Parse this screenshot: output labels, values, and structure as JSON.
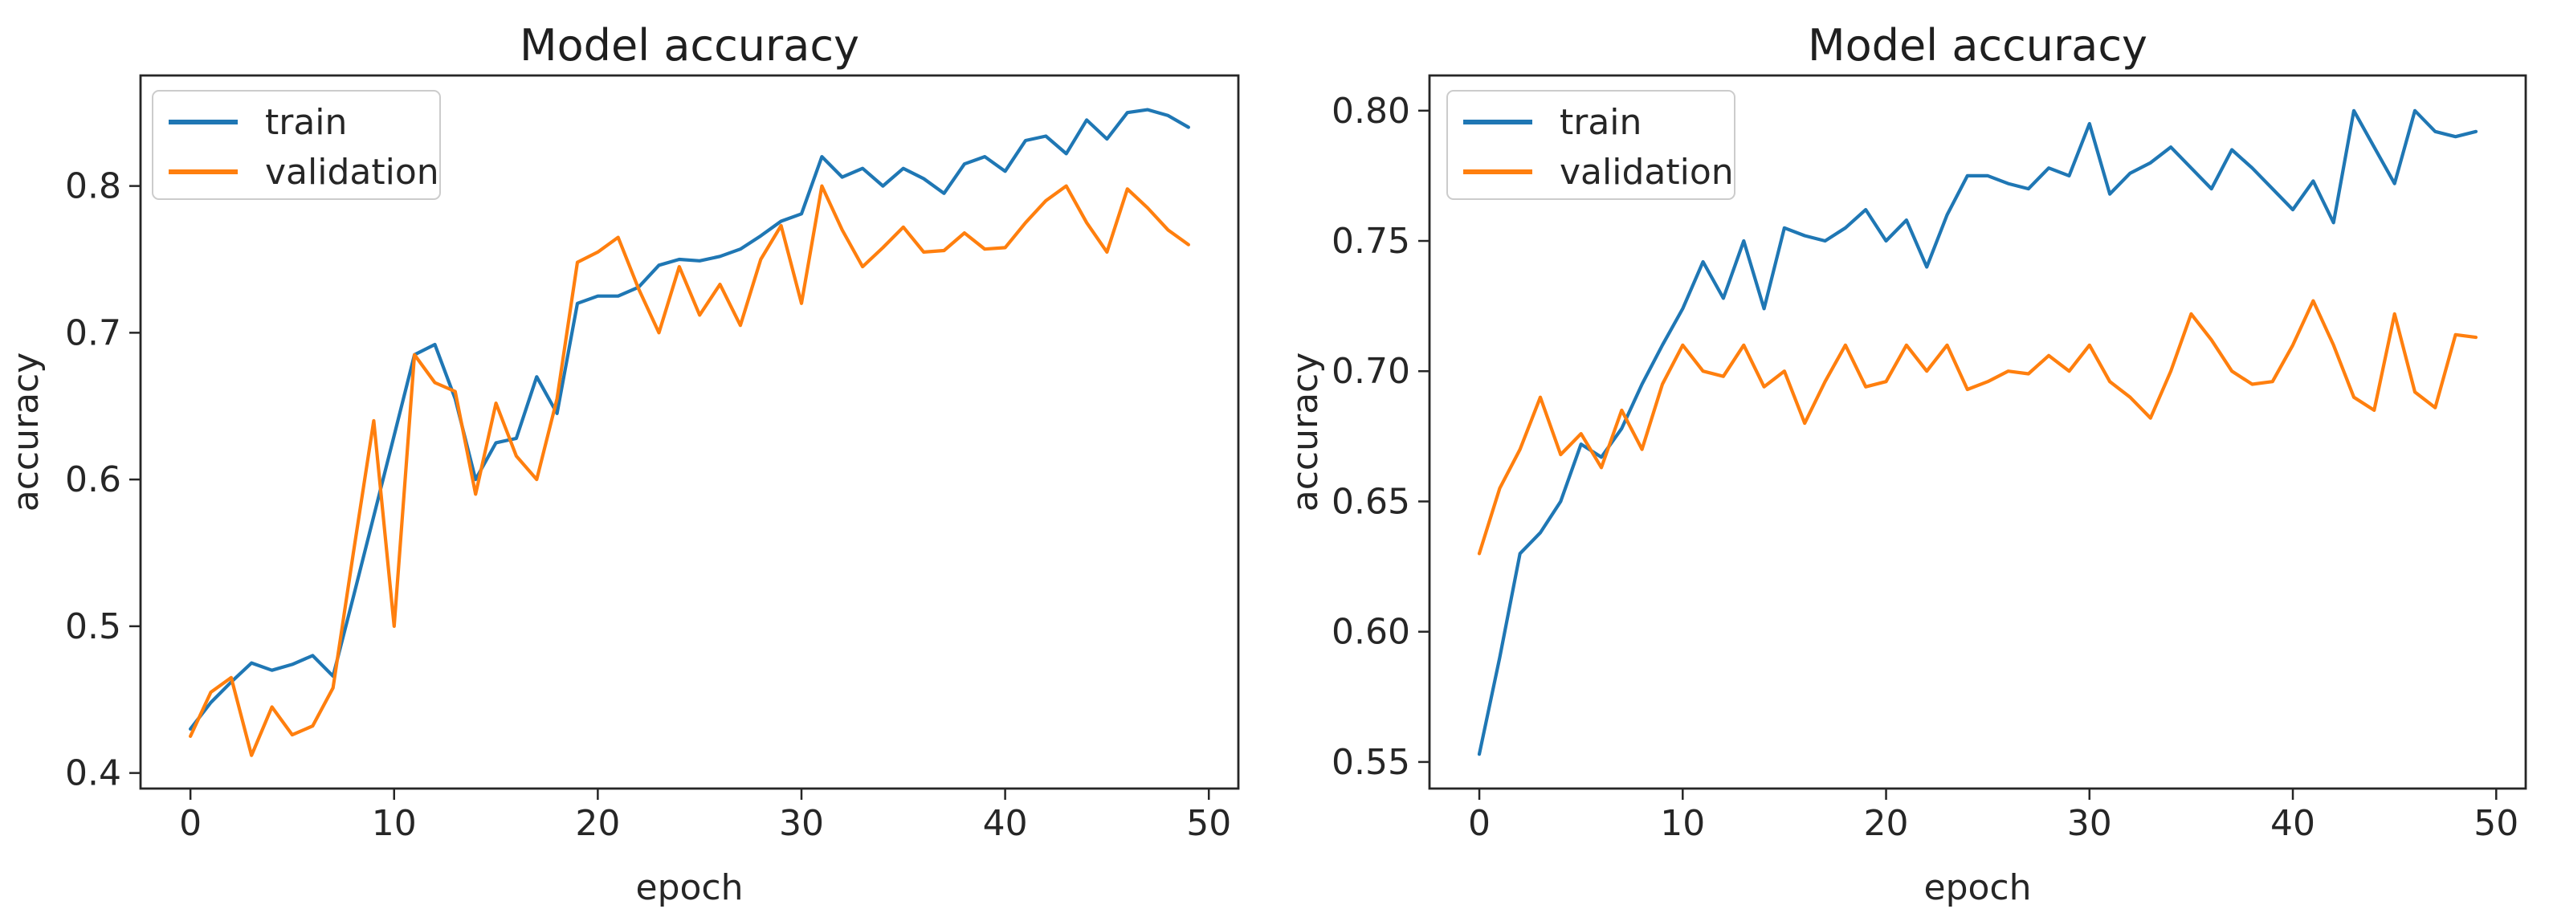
{
  "page": {
    "background": "#ffffff"
  },
  "chart_data": [
    {
      "type": "line",
      "title": "Model accuracy",
      "xlabel": "epoch",
      "ylabel": "accuracy",
      "legend_position": "upper left",
      "grid": false,
      "xlim": [
        -2.45,
        51.45
      ],
      "ylim": [
        0.3894,
        0.8753
      ],
      "x_ticks": [
        0,
        10,
        20,
        30,
        40,
        50
      ],
      "x_tick_labels": [
        "0",
        "10",
        "20",
        "30",
        "40",
        "50"
      ],
      "y_ticks": [
        0.4,
        0.5,
        0.6,
        0.7,
        0.8
      ],
      "y_tick_labels": [
        "0.4",
        "0.5",
        "0.6",
        "0.7",
        "0.8"
      ],
      "epochs": [
        0,
        1,
        2,
        3,
        4,
        5,
        6,
        7,
        8,
        9,
        10,
        11,
        12,
        13,
        14,
        15,
        16,
        17,
        18,
        19,
        20,
        21,
        22,
        23,
        24,
        25,
        26,
        27,
        28,
        29,
        30,
        31,
        32,
        33,
        34,
        35,
        36,
        37,
        38,
        39,
        40,
        41,
        42,
        43,
        44,
        45,
        46,
        47,
        48,
        49
      ],
      "series": [
        {
          "name": "train",
          "color": "#1f77b4",
          "values": [
            0.43,
            0.448,
            0.462,
            0.475,
            0.47,
            0.474,
            0.48,
            0.466,
            0.52,
            0.575,
            0.63,
            0.685,
            0.692,
            0.655,
            0.6,
            0.625,
            0.628,
            0.67,
            0.645,
            0.72,
            0.725,
            0.725,
            0.731,
            0.746,
            0.75,
            0.749,
            0.752,
            0.757,
            0.766,
            0.776,
            0.781,
            0.82,
            0.806,
            0.812,
            0.8,
            0.812,
            0.805,
            0.795,
            0.815,
            0.82,
            0.81,
            0.831,
            0.834,
            0.822,
            0.845,
            0.832,
            0.85,
            0.852,
            0.848,
            0.84
          ]
        },
        {
          "name": "validation",
          "color": "#ff7f0e",
          "values": [
            0.425,
            0.455,
            0.465,
            0.412,
            0.445,
            0.426,
            0.432,
            0.458,
            0.55,
            0.64,
            0.5,
            0.685,
            0.666,
            0.66,
            0.59,
            0.652,
            0.616,
            0.6,
            0.655,
            0.748,
            0.755,
            0.765,
            0.73,
            0.7,
            0.745,
            0.712,
            0.733,
            0.705,
            0.75,
            0.773,
            0.72,
            0.8,
            0.77,
            0.745,
            0.758,
            0.772,
            0.755,
            0.756,
            0.768,
            0.757,
            0.758,
            0.775,
            0.79,
            0.8,
            0.775,
            0.755,
            0.798,
            0.785,
            0.77,
            0.76
          ]
        }
      ]
    },
    {
      "type": "line",
      "title": "Model accuracy",
      "xlabel": "epoch",
      "ylabel": "accuracy",
      "legend_position": "upper left",
      "grid": false,
      "xlim": [
        -2.45,
        51.45
      ],
      "ylim": [
        0.5398,
        0.8135
      ],
      "x_ticks": [
        0,
        10,
        20,
        30,
        40,
        50
      ],
      "x_tick_labels": [
        "0",
        "10",
        "20",
        "30",
        "40",
        "50"
      ],
      "y_ticks": [
        0.55,
        0.6,
        0.65,
        0.7,
        0.75,
        0.8
      ],
      "y_tick_labels": [
        "0.55",
        "0.60",
        "0.65",
        "0.70",
        "0.75",
        "0.80"
      ],
      "epochs": [
        0,
        1,
        2,
        3,
        4,
        5,
        6,
        7,
        8,
        9,
        10,
        11,
        12,
        13,
        14,
        15,
        16,
        17,
        18,
        19,
        20,
        21,
        22,
        23,
        24,
        25,
        26,
        27,
        28,
        29,
        30,
        31,
        32,
        33,
        34,
        35,
        36,
        37,
        38,
        39,
        40,
        41,
        42,
        43,
        44,
        45,
        46,
        47,
        48,
        49
      ],
      "series": [
        {
          "name": "train",
          "color": "#1f77b4",
          "values": [
            0.553,
            0.59,
            0.63,
            0.638,
            0.65,
            0.672,
            0.667,
            0.678,
            0.695,
            0.71,
            0.724,
            0.742,
            0.728,
            0.75,
            0.724,
            0.755,
            0.752,
            0.75,
            0.755,
            0.762,
            0.75,
            0.758,
            0.74,
            0.76,
            0.775,
            0.775,
            0.772,
            0.77,
            0.778,
            0.775,
            0.795,
            0.768,
            0.776,
            0.78,
            0.786,
            0.778,
            0.77,
            0.785,
            0.778,
            0.77,
            0.762,
            0.773,
            0.757,
            0.8,
            0.786,
            0.772,
            0.8,
            0.792,
            0.79,
            0.792
          ]
        },
        {
          "name": "validation",
          "color": "#ff7f0e",
          "values": [
            0.63,
            0.655,
            0.67,
            0.69,
            0.668,
            0.676,
            0.663,
            0.685,
            0.67,
            0.695,
            0.71,
            0.7,
            0.698,
            0.71,
            0.694,
            0.7,
            0.68,
            0.696,
            0.71,
            0.694,
            0.696,
            0.71,
            0.7,
            0.71,
            0.693,
            0.696,
            0.7,
            0.699,
            0.706,
            0.7,
            0.71,
            0.696,
            0.69,
            0.682,
            0.7,
            0.722,
            0.712,
            0.7,
            0.695,
            0.696,
            0.71,
            0.727,
            0.71,
            0.69,
            0.685,
            0.722,
            0.692,
            0.686,
            0.714,
            0.713
          ]
        }
      ]
    }
  ]
}
